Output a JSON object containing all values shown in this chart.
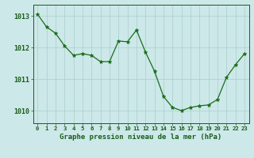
{
  "x": [
    0,
    1,
    2,
    3,
    4,
    5,
    6,
    7,
    8,
    9,
    10,
    11,
    12,
    13,
    14,
    15,
    16,
    17,
    18,
    19,
    20,
    21,
    22,
    23
  ],
  "y": [
    1013.05,
    1012.65,
    1012.45,
    1012.05,
    1011.75,
    1011.8,
    1011.75,
    1011.55,
    1011.55,
    1012.2,
    1012.18,
    1012.55,
    1011.85,
    1011.25,
    1010.45,
    1010.1,
    1010.0,
    1010.1,
    1010.15,
    1010.18,
    1010.35,
    1011.05,
    1011.45,
    1011.8
  ],
  "line_color": "#1a6e1a",
  "marker": "*",
  "marker_size": 3.5,
  "background_color": "#cce8e8",
  "grid_color": "#aacece",
  "xlabel": "Graphe pression niveau de la mer (hPa)",
  "xlabel_color": "#1a5c1a",
  "tick_color": "#1a5c1a",
  "ylim": [
    1009.6,
    1013.35
  ],
  "yticks": [
    1010,
    1011,
    1012,
    1013
  ],
  "xlim": [
    -0.5,
    23.5
  ],
  "xticks": [
    0,
    1,
    2,
    3,
    4,
    5,
    6,
    7,
    8,
    9,
    10,
    11,
    12,
    13,
    14,
    15,
    16,
    17,
    18,
    19,
    20,
    21,
    22,
    23
  ],
  "xtick_fontsize": 5.2,
  "ytick_fontsize": 6.0,
  "xlabel_fontsize": 6.5
}
